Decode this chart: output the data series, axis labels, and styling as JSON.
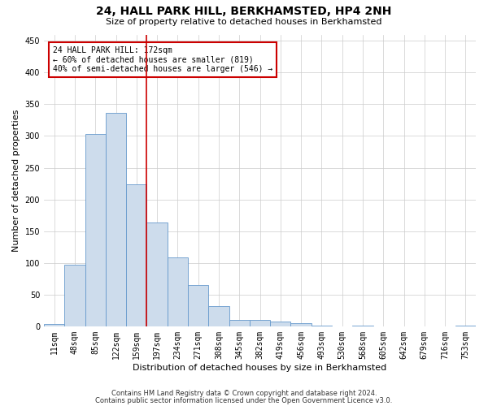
{
  "title": "24, HALL PARK HILL, BERKHAMSTED, HP4 2NH",
  "subtitle": "Size of property relative to detached houses in Berkhamsted",
  "xlabel": "Distribution of detached houses by size in Berkhamsted",
  "ylabel": "Number of detached properties",
  "bar_color": "#cddcec",
  "bar_edge_color": "#6699cc",
  "categories": [
    "11sqm",
    "48sqm",
    "85sqm",
    "122sqm",
    "159sqm",
    "197sqm",
    "234sqm",
    "271sqm",
    "308sqm",
    "345sqm",
    "382sqm",
    "419sqm",
    "456sqm",
    "493sqm",
    "530sqm",
    "568sqm",
    "605sqm",
    "642sqm",
    "679sqm",
    "716sqm",
    "753sqm"
  ],
  "values": [
    3,
    97,
    303,
    337,
    224,
    164,
    109,
    65,
    32,
    10,
    10,
    8,
    5,
    1,
    0,
    1,
    0,
    0,
    0,
    0,
    1
  ],
  "ylim": [
    0,
    460
  ],
  "yticks": [
    0,
    50,
    100,
    150,
    200,
    250,
    300,
    350,
    400,
    450
  ],
  "property_line_x": 4.5,
  "annotation_line1": "24 HALL PARK HILL: 172sqm",
  "annotation_line2": "← 60% of detached houses are smaller (819)",
  "annotation_line3": "40% of semi-detached houses are larger (546) →",
  "annotation_box_color": "#ffffff",
  "annotation_box_edge": "#cc0000",
  "property_line_color": "#cc0000",
  "grid_color": "#cccccc",
  "footer1": "Contains HM Land Registry data © Crown copyright and database right 2024.",
  "footer2": "Contains public sector information licensed under the Open Government Licence v3.0.",
  "background_color": "#ffffff",
  "title_fontsize": 10,
  "subtitle_fontsize": 8,
  "xlabel_fontsize": 8,
  "ylabel_fontsize": 8,
  "tick_fontsize": 7,
  "annotation_fontsize": 7,
  "footer_fontsize": 6
}
